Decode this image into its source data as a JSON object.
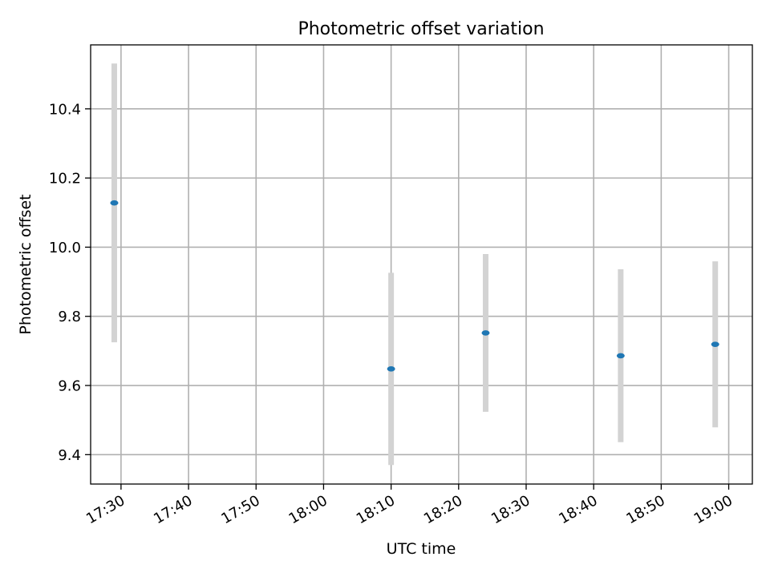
{
  "chart_data": {
    "type": "scatter",
    "title": "Photometric offset variation",
    "xlabel": "UTC time",
    "ylabel": "Photometric offset",
    "x_type": "time",
    "xlim": [
      "17:25:30",
      "19:03:30"
    ],
    "ylim": [
      9.315,
      10.585
    ],
    "x_ticks": [
      "17:30",
      "17:40",
      "17:50",
      "18:00",
      "18:10",
      "18:20",
      "18:30",
      "18:40",
      "18:50",
      "19:00"
    ],
    "y_ticks": [
      9.4,
      9.6,
      9.8,
      10.0,
      10.2,
      10.4
    ],
    "y_tick_labels": [
      "9.4",
      "9.6",
      "9.8",
      "10.0",
      "10.2",
      "10.4"
    ],
    "grid": true,
    "marker_color": "#1f77b4",
    "errorbar_color": "#d3d3d3",
    "points": [
      {
        "x": "17:29:00",
        "y": 10.128,
        "err": 0.403
      },
      {
        "x": "18:10:00",
        "y": 9.648,
        "err": 0.278
      },
      {
        "x": "18:24:00",
        "y": 9.752,
        "err": 0.228
      },
      {
        "x": "18:44:00",
        "y": 9.686,
        "err": 0.25
      },
      {
        "x": "18:58:00",
        "y": 9.719,
        "err": 0.24
      }
    ]
  }
}
